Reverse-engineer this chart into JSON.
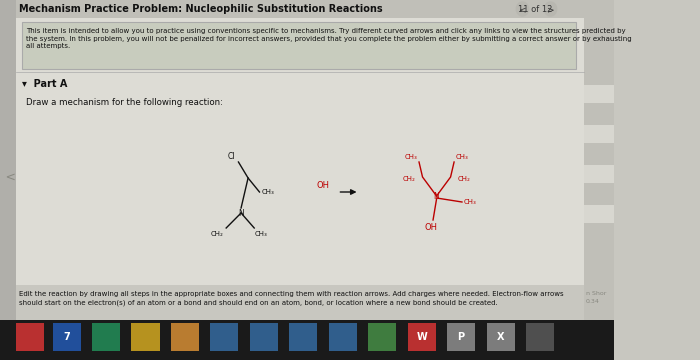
{
  "title": "Mechanism Practice Problem: Nucleophilic Substitution Reactions",
  "page_indicator": "11 of 12",
  "bg_color": "#c8c7c0",
  "content_bg": "#dddcd5",
  "header_bg": "#c0bfb8",
  "info_bg": "#c8ccbe",
  "info_border": "#aaaaaa",
  "header_color": "#111111",
  "body_text_color": "#111111",
  "info_text_line1": "This item is intended to allow you to practice using conventions specific to mechanisms. Try different curved arrows and click any links to view the structures predicted by",
  "info_text_line2": "the system. In this problem, you will not be penalized for incorrect answers, provided that you complete the problem either by submitting a correct answer or by exhausting",
  "info_text_line3": "all attempts.",
  "part_label": "Part A",
  "question_text": "Draw a mechanism for the following reaction:",
  "footer_text_line1": "Edit the reaction by drawing all steps in the appropriate boxes and connecting them with reaction arrows. Add charges where needed. Electron-flow arrows",
  "footer_text_line2": "should start on the electron(s) of an atom or a bond and should end on an atom, bond, or location where a new bond should be created.",
  "reaction_arrow_color": "#111111",
  "reactant_color": "#111111",
  "oh_color": "#bb0000",
  "product_color": "#bb0000",
  "taskbar_bg": "#1a1a1a",
  "right_panel_bg": "#c0bfb8",
  "left_arrow_bg": "#888880",
  "footer_bg": "#c8c7c0"
}
